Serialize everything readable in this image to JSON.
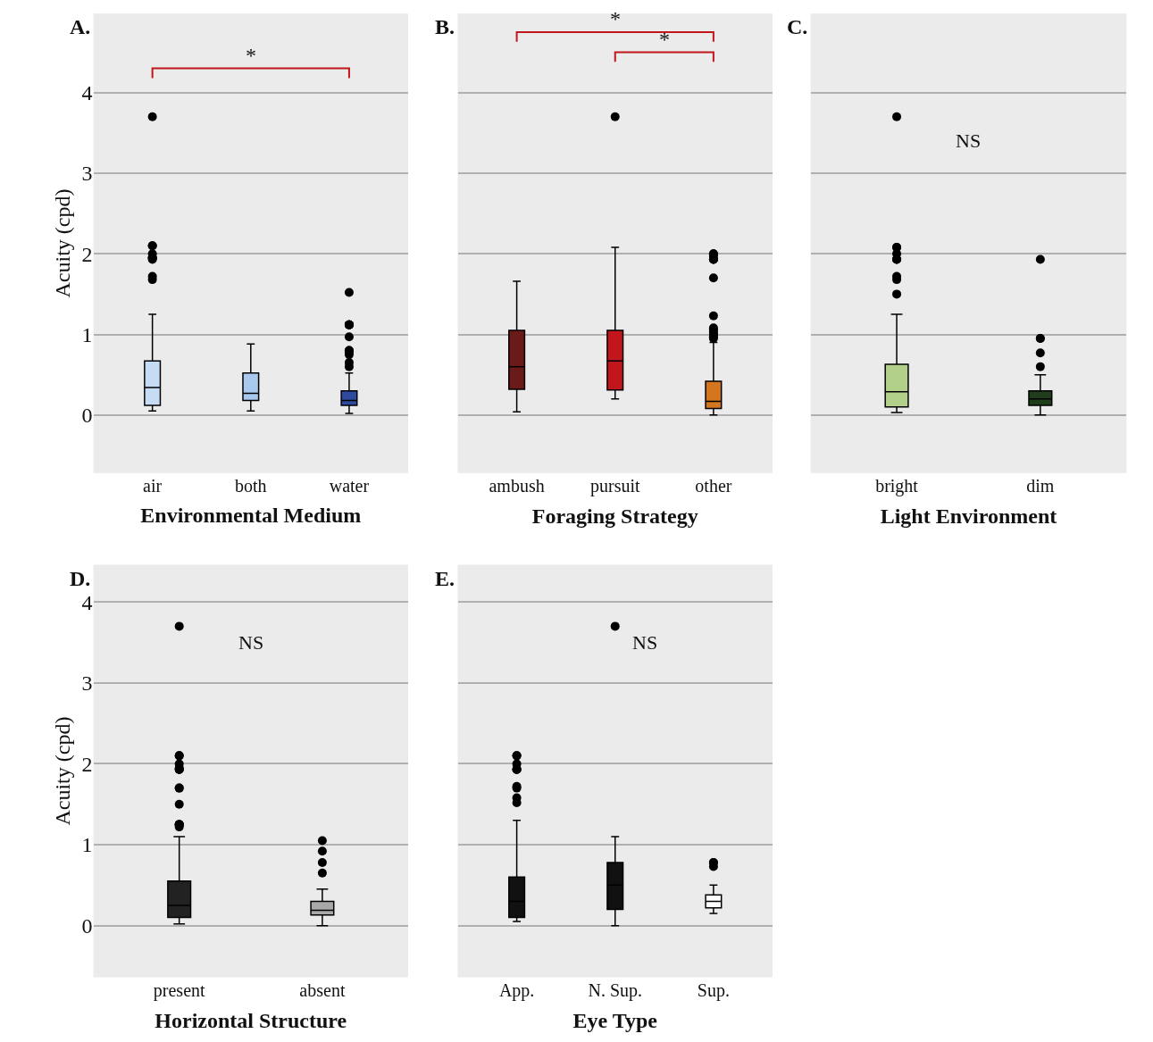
{
  "chart_data": [
    {
      "type": "box",
      "title": "A.",
      "xlabel": "Environmental Medium",
      "ylabel": "Acuity (cpd)",
      "categories": [
        "air",
        "both",
        "water"
      ],
      "colors": [
        "#c6dcf4",
        "#a8c8ee",
        "#2e4a9e"
      ],
      "ylim": [
        -0.72,
        4.98
      ],
      "yticks": [
        0,
        1,
        2,
        3,
        4
      ],
      "grid": "y",
      "annotations": [
        "*"
      ],
      "boxes": [
        {
          "low": 0.05,
          "q1": 0.12,
          "median": 0.34,
          "q3": 0.67,
          "high": 1.25,
          "outliers": [
            3.7,
            2.1,
            2.1,
            2.0,
            1.95,
            1.95,
            1.95,
            1.93,
            1.72,
            1.68
          ]
        },
        {
          "low": 0.05,
          "q1": 0.18,
          "median": 0.27,
          "q3": 0.52,
          "high": 0.88
        },
        {
          "low": 0.02,
          "q1": 0.12,
          "median": 0.18,
          "q3": 0.3,
          "high": 0.52,
          "outliers": [
            1.52,
            1.12,
            1.12,
            1.12,
            1.12,
            1.12,
            0.97,
            0.8,
            0.8,
            0.78,
            0.75,
            0.65,
            0.6
          ]
        }
      ]
    },
    {
      "type": "box",
      "title": "B.",
      "xlabel": "Foraging Strategy",
      "categories": [
        "ambush",
        "pursuit",
        "other"
      ],
      "colors": [
        "#6b1a1a",
        "#c0161c",
        "#d4761e"
      ],
      "ylim": [
        -0.72,
        4.98
      ],
      "yticks": [
        0,
        1,
        2,
        3,
        4
      ],
      "grid": "y",
      "tick_labels": "x",
      "annotations": [
        "*",
        "*"
      ],
      "boxes": [
        {
          "low": 0.04,
          "q1": 0.32,
          "median": 0.6,
          "q3": 1.05,
          "high": 1.66
        },
        {
          "low": 0.2,
          "q1": 0.31,
          "median": 0.67,
          "q3": 1.05,
          "high": 2.08,
          "outliers": [
            3.7
          ]
        },
        {
          "low": 0.0,
          "q1": 0.08,
          "median": 0.17,
          "q3": 0.42,
          "high": 0.9,
          "outliers": [
            2.0,
            2.0,
            1.97,
            1.93,
            1.93,
            1.93,
            1.7,
            1.23,
            1.08,
            1.06,
            1.04,
            1.0,
            1.0,
            0.97,
            0.97,
            0.95
          ]
        }
      ]
    },
    {
      "type": "box",
      "title": "C.",
      "xlabel": "Light Environment",
      "categories": [
        "bright",
        "dim"
      ],
      "colors": [
        "#b3d08a",
        "#1f3d1a"
      ],
      "ylim": [
        -0.72,
        4.98
      ],
      "yticks": [
        0,
        1,
        2,
        3,
        4
      ],
      "grid": "y",
      "tick_labels": "x",
      "annotations": [
        "NS"
      ],
      "boxes": [
        {
          "low": 0.03,
          "q1": 0.1,
          "median": 0.29,
          "q3": 0.63,
          "high": 1.25,
          "outliers": [
            3.7,
            2.08,
            2.08,
            2.0,
            1.93,
            1.93,
            1.93,
            1.72,
            1.68,
            1.5
          ]
        },
        {
          "low": 0.0,
          "q1": 0.12,
          "median": 0.2,
          "q3": 0.3,
          "high": 0.5,
          "outliers": [
            1.93,
            0.95,
            0.95,
            0.77,
            0.6
          ]
        }
      ]
    },
    {
      "type": "box",
      "title": "D.",
      "xlabel": "Horizontal Structure",
      "ylabel": "Acuity (cpd)",
      "categories": [
        "present",
        "absent"
      ],
      "colors": [
        "#222222",
        "#a8a8a8"
      ],
      "ylim": [
        -0.64,
        4.46
      ],
      "yticks": [
        0,
        1,
        2,
        3,
        4
      ],
      "grid": "y",
      "annotations": [
        "NS"
      ],
      "boxes": [
        {
          "low": 0.02,
          "q1": 0.1,
          "median": 0.25,
          "q3": 0.55,
          "high": 1.1,
          "outliers": [
            3.7,
            2.1,
            2.1,
            2.0,
            1.95,
            1.93,
            1.93,
            1.93,
            1.7,
            1.7,
            1.5,
            1.25,
            1.25,
            1.25,
            1.25,
            1.22
          ]
        },
        {
          "low": 0.0,
          "q1": 0.13,
          "median": 0.19,
          "q3": 0.3,
          "high": 0.45,
          "outliers": [
            1.05,
            0.92,
            0.78,
            0.65
          ]
        }
      ]
    },
    {
      "type": "box",
      "title": "E.",
      "xlabel": "Eye Type",
      "categories": [
        "App.",
        "N. Sup.",
        "Sup."
      ],
      "colors": [
        "#111111",
        "#111111",
        "#ffffff"
      ],
      "ylim": [
        -0.64,
        4.46
      ],
      "yticks": [
        0,
        1,
        2,
        3,
        4
      ],
      "grid": "y",
      "tick_labels": "x",
      "annotations": [
        "NS"
      ],
      "boxes": [
        {
          "low": 0.05,
          "q1": 0.1,
          "median": 0.3,
          "q3": 0.6,
          "high": 1.3,
          "outliers": [
            2.1,
            2.1,
            2.0,
            1.93,
            1.93,
            1.93,
            1.72,
            1.7,
            1.58,
            1.52
          ]
        },
        {
          "low": 0.0,
          "q1": 0.2,
          "median": 0.5,
          "q3": 0.78,
          "high": 1.1,
          "outliers": [
            3.7
          ]
        },
        {
          "low": 0.15,
          "q1": 0.22,
          "median": 0.3,
          "q3": 0.38,
          "high": 0.5,
          "outliers": [
            0.78,
            0.78,
            0.73
          ]
        }
      ]
    }
  ]
}
